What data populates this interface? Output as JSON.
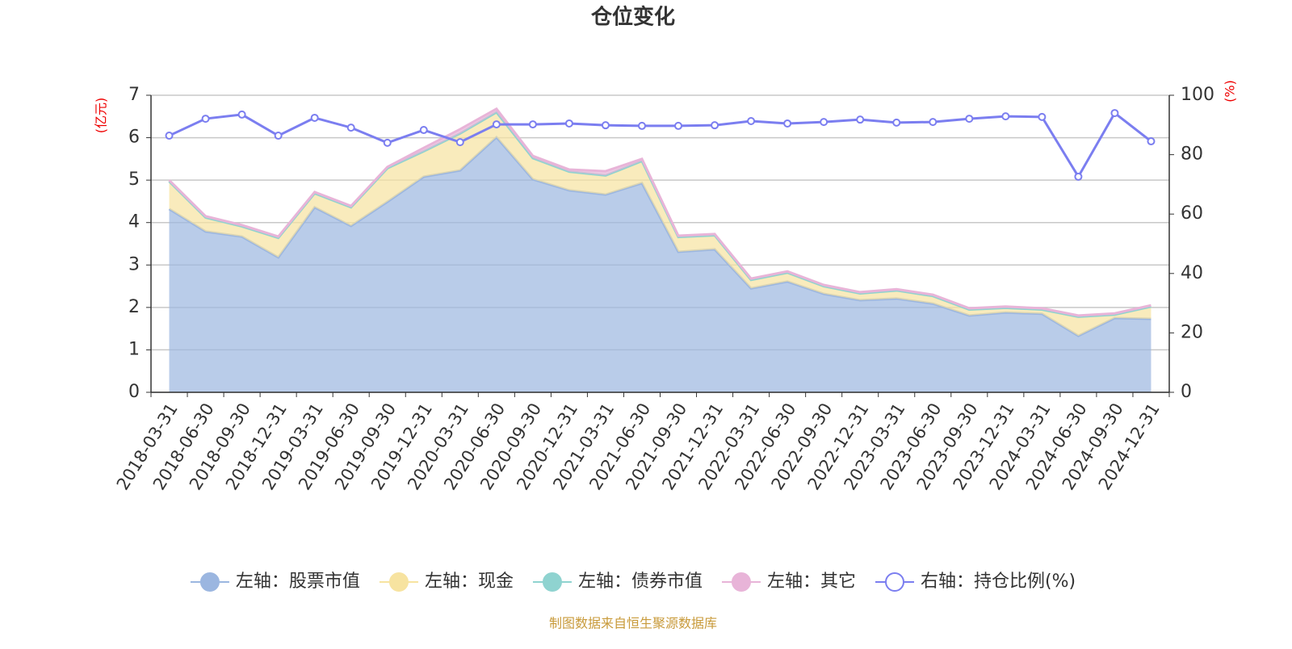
{
  "chart_data": {
    "type": "area",
    "stacked": true,
    "title": "仓位变化",
    "y_label": "(亿元)",
    "y2_label": "(%)",
    "source": "制图数据来自恒生聚源数据库",
    "categories": [
      "2018-03-31",
      "2018-06-30",
      "2018-09-30",
      "2018-12-31",
      "2019-03-31",
      "2019-06-30",
      "2019-09-30",
      "2019-12-31",
      "2020-03-31",
      "2020-06-30",
      "2020-09-30",
      "2020-12-31",
      "2021-03-31",
      "2021-06-30",
      "2021-09-30",
      "2021-12-31",
      "2022-03-31",
      "2022-06-30",
      "2022-09-30",
      "2022-12-31",
      "2023-03-31",
      "2023-06-30",
      "2023-09-30",
      "2023-12-31",
      "2024-03-31",
      "2024-06-30",
      "2024-09-30",
      "2024-12-31"
    ],
    "series": [
      {
        "name": "左轴：股票市值",
        "color": "#9bb6e0",
        "values": [
          4.32,
          3.79,
          3.67,
          3.18,
          4.36,
          3.92,
          4.49,
          5.08,
          5.23,
          6.01,
          5.02,
          4.76,
          4.66,
          4.93,
          3.31,
          3.37,
          2.45,
          2.61,
          2.32,
          2.17,
          2.21,
          2.09,
          1.81,
          1.88,
          1.85,
          1.33,
          1.75,
          1.73
        ]
      },
      {
        "name": "左轴：现金",
        "color": "#f7e3a0",
        "values": [
          0.65,
          0.33,
          0.24,
          0.46,
          0.33,
          0.44,
          0.79,
          0.6,
          0.87,
          0.59,
          0.5,
          0.44,
          0.45,
          0.52,
          0.35,
          0.33,
          0.2,
          0.21,
          0.18,
          0.16,
          0.19,
          0.18,
          0.14,
          0.11,
          0.1,
          0.45,
          0.08,
          0.29
        ]
      },
      {
        "name": "左轴：债券市值",
        "color": "#8fd3d0",
        "values": [
          0,
          0,
          0,
          0,
          0,
          0,
          0,
          0,
          0,
          0,
          0,
          0,
          0,
          0,
          0,
          0,
          0,
          0,
          0,
          0,
          0,
          0,
          0,
          0,
          0,
          0,
          0,
          0
        ]
      },
      {
        "name": "左轴：其它",
        "color": "#e8b4d8",
        "values": [
          0.03,
          0.03,
          0.03,
          0.03,
          0.03,
          0.03,
          0.03,
          0.08,
          0.1,
          0.08,
          0.05,
          0.05,
          0.1,
          0.05,
          0.03,
          0.03,
          0.03,
          0.03,
          0.03,
          0.03,
          0.03,
          0.03,
          0.03,
          0.03,
          0.03,
          0.03,
          0.03,
          0.03
        ]
      },
      {
        "name": "右轴：持仓比例(%)",
        "color": "#7b7ef0",
        "axis": "y2",
        "values": [
          86.4,
          92.1,
          93.5,
          86.4,
          92.4,
          89.1,
          84.0,
          88.3,
          84.2,
          90.2,
          90.2,
          90.5,
          89.9,
          89.7,
          89.7,
          89.9,
          91.3,
          90.5,
          91.0,
          91.8,
          90.8,
          91.0,
          92.1,
          92.9,
          92.7,
          72.6,
          94.0,
          84.5
        ]
      }
    ],
    "ylim": [
      0,
      7
    ],
    "yticks": [
      0,
      1,
      2,
      3,
      4,
      5,
      6,
      7
    ],
    "y2lim": [
      0,
      100
    ],
    "y2ticks": [
      0,
      20,
      40,
      60,
      80,
      100
    ],
    "grid": true,
    "legend": "bottom"
  }
}
